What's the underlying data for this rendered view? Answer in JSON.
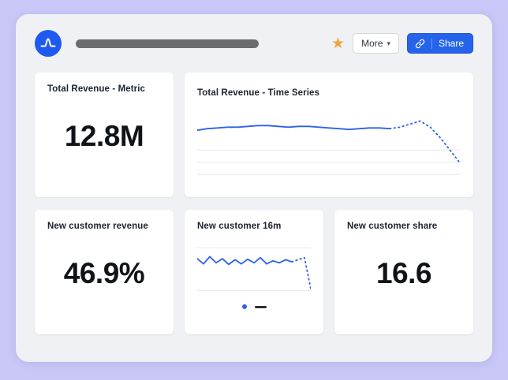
{
  "header": {
    "logo_name": "amplitude-logo",
    "star_glyph": "★",
    "more_label": "More",
    "more_caret": "▾",
    "share_label": "Share",
    "share_icon": "link-icon"
  },
  "cards": {
    "total_revenue_metric": {
      "title": "Total Revenue - Metric",
      "value": "12.8M"
    },
    "total_revenue_time_series": {
      "title": "Total Revenue - Time Series"
    },
    "new_customer_revenue": {
      "title": "New customer revenue",
      "value": "46.9%"
    },
    "new_customer_16m": {
      "title": "New customer 16m"
    },
    "new_customer_share": {
      "title": "New customer share",
      "value": "16.6"
    }
  },
  "colors": {
    "background_lavender": "#c9c7f7",
    "panel_gray": "#f0f1f5",
    "card_white": "#ffffff",
    "accent_blue": "#2563eb",
    "logo_blue": "#1f5af0",
    "line_blue": "#2c62e8",
    "grid_gray": "#e7e9ee",
    "star_orange": "#f0a43a",
    "title_bar_gray": "#6b6b70",
    "text_dark": "#101318"
  },
  "chart_data": [
    {
      "name": "total-revenue-time-series",
      "type": "line",
      "title": "Total Revenue - Time Series",
      "xlabel": "",
      "ylabel": "",
      "ylim": [
        0,
        100
      ],
      "legend": "none",
      "grid": "horizontal",
      "gridline_values": [
        46,
        30,
        14
      ],
      "line_color": "#2c62e8",
      "grid_color": "#e7e9ee",
      "series": [
        {
          "name": "Total Revenue",
          "solid_values": [
            72,
            74,
            75,
            76,
            76,
            77,
            78,
            78,
            77,
            76,
            77,
            77,
            76,
            75,
            74,
            73,
            74,
            75,
            75,
            74
          ],
          "dotted_values": [
            76,
            80,
            84,
            76,
            62,
            45,
            28
          ]
        }
      ]
    },
    {
      "name": "new-customer-16m",
      "type": "line",
      "title": "New customer 16m",
      "xlabel": "",
      "ylabel": "",
      "ylim": [
        0,
        100
      ],
      "legend": "none",
      "grid": "horizontal",
      "gridline_values": [
        89,
        7
      ],
      "line_color": "#2c62e8",
      "grid_color": "#e7e9ee",
      "series": [
        {
          "name": "New customer",
          "solid_values": [
            68,
            58,
            72,
            60,
            68,
            57,
            66,
            58,
            67,
            60,
            70,
            58,
            64,
            60,
            66,
            62
          ],
          "dotted_values": [
            66,
            70,
            10
          ]
        }
      ]
    }
  ]
}
